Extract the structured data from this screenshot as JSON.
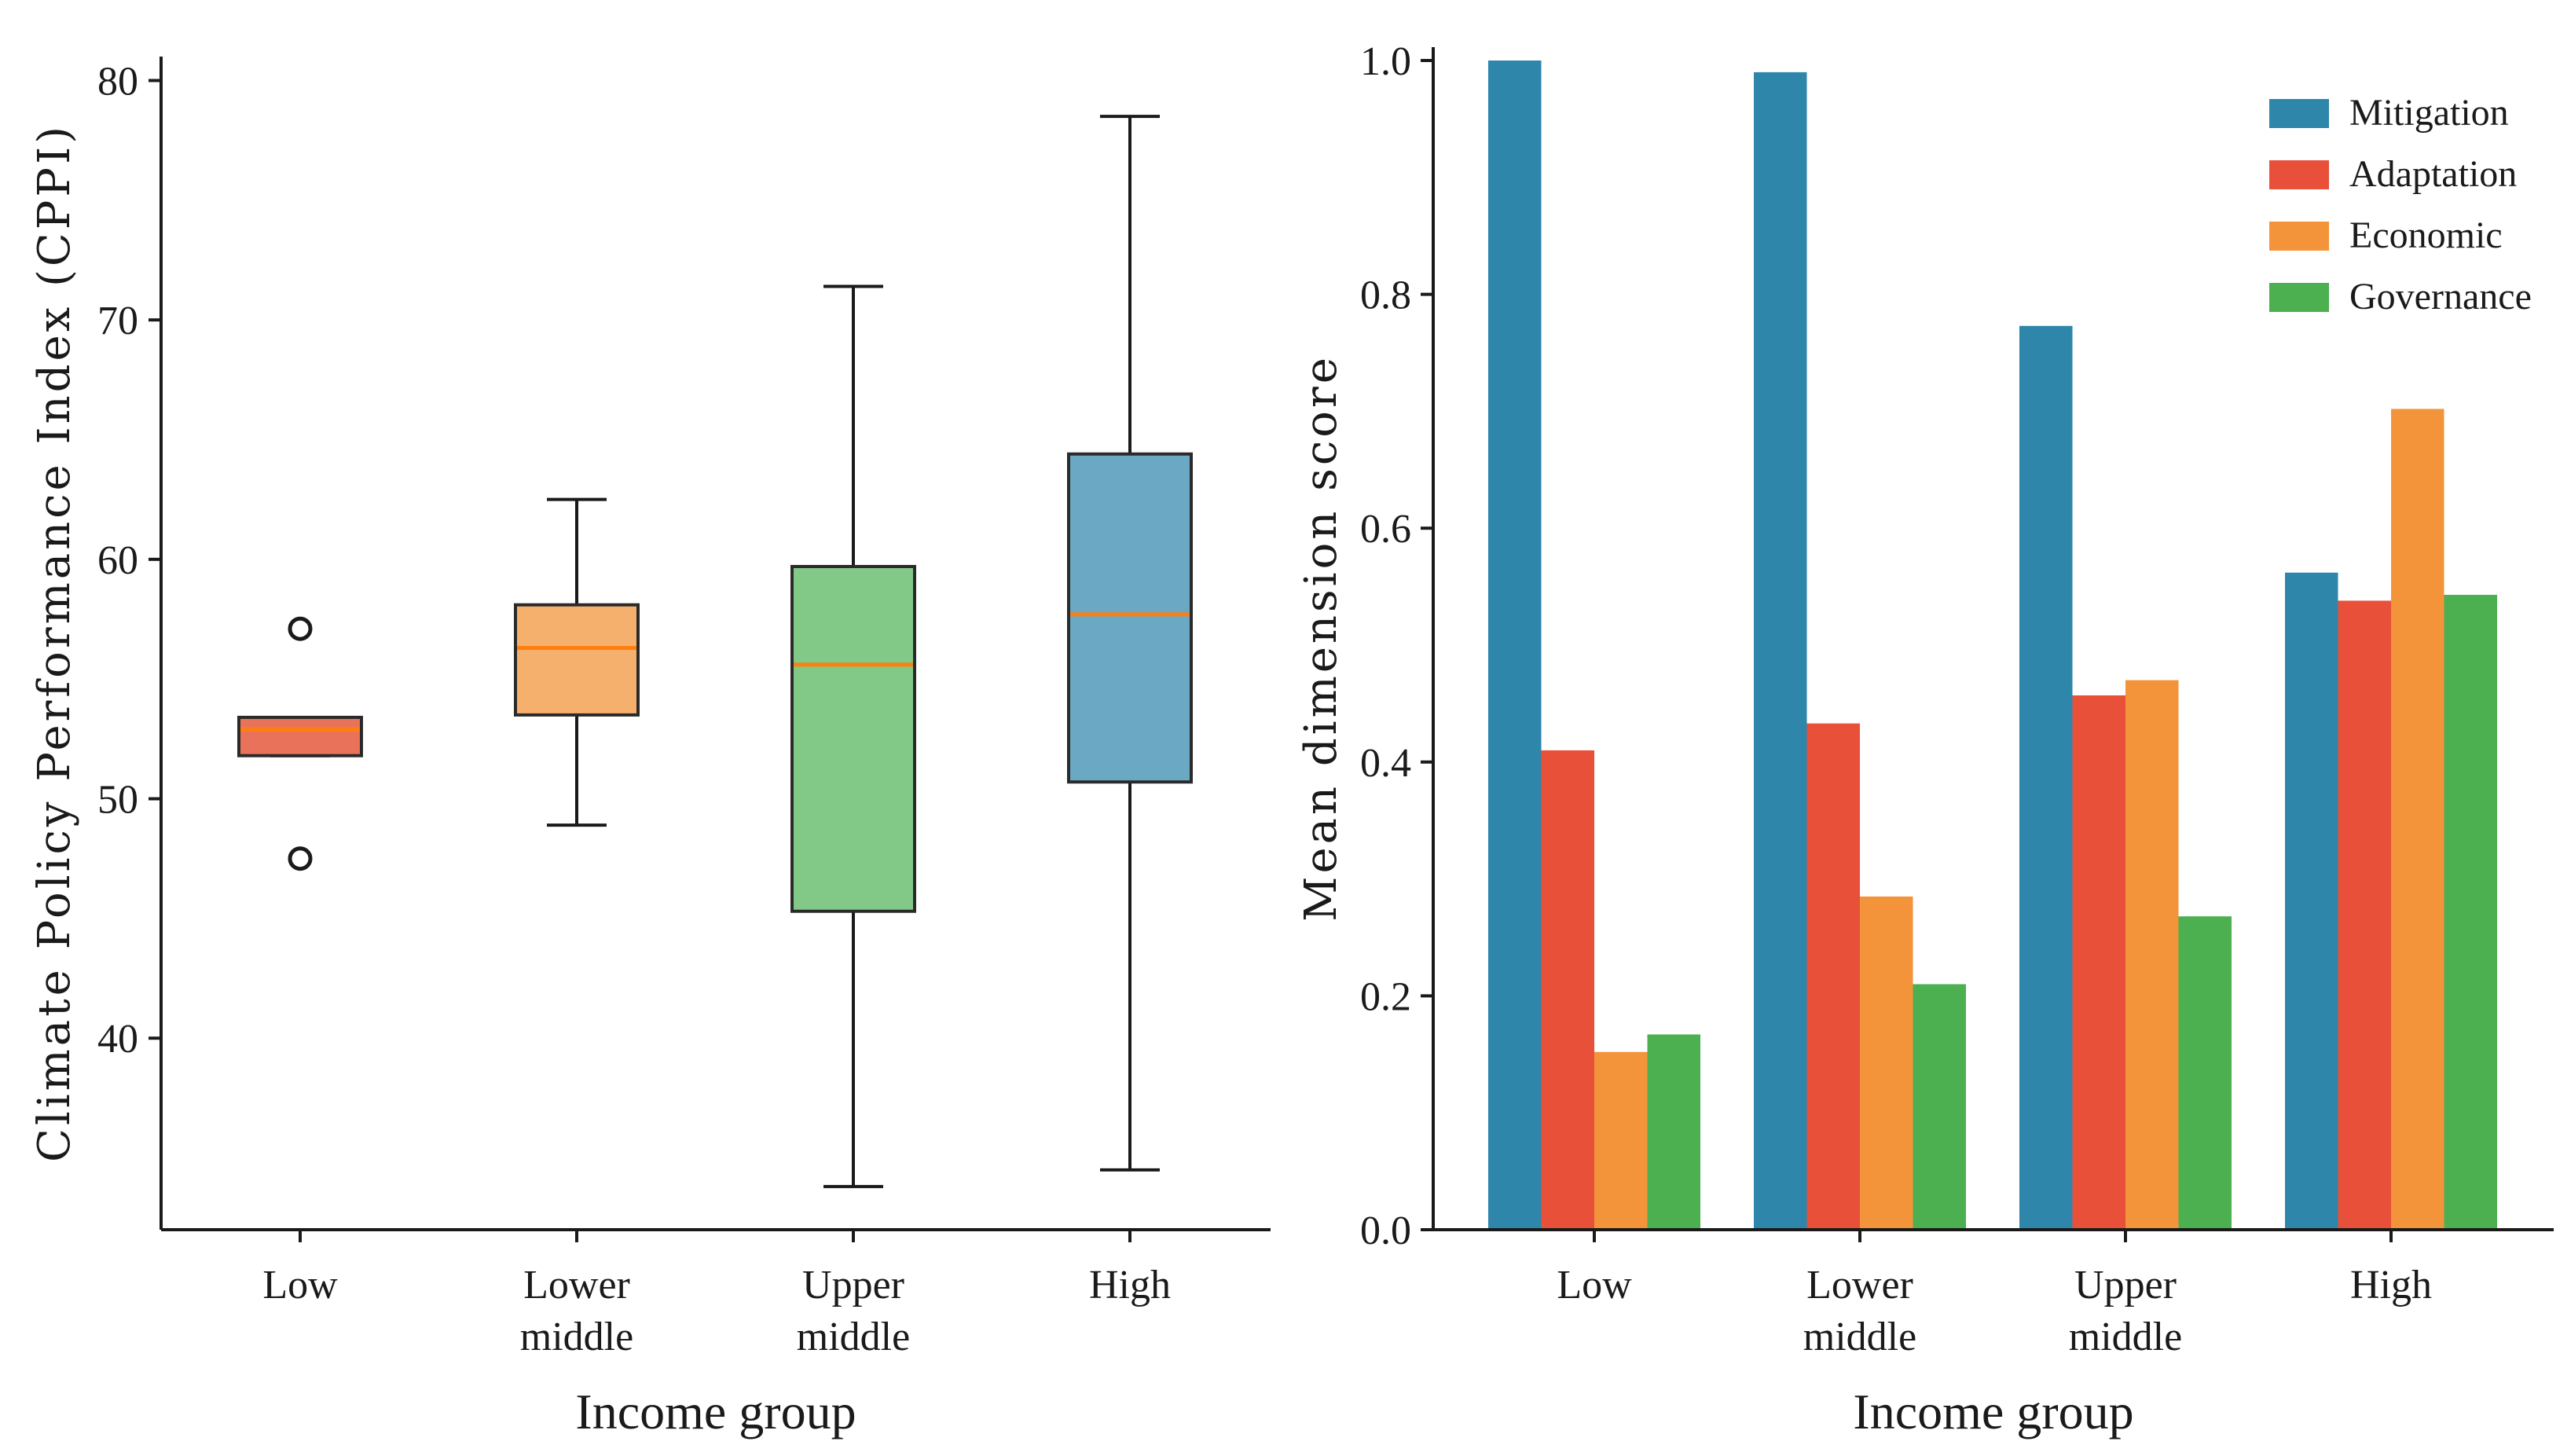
{
  "chart_data": [
    {
      "type": "box",
      "ylabel": "Climate Policy Performance Index (CPPI)",
      "xlabel": "Income group",
      "ylim": [
        32,
        81
      ],
      "yticks": [
        40,
        50,
        60,
        70,
        80
      ],
      "categories": [
        "Low",
        "Lower\nmiddle",
        "Upper\nmiddle",
        "High"
      ],
      "boxes": [
        {
          "name": "Low",
          "whisker_low": 51.8,
          "q1": 51.8,
          "median": 52.9,
          "q3": 53.4,
          "whisker_high": 53.4,
          "outliers": [
            57.1,
            47.5
          ],
          "color": "#e8735a"
        },
        {
          "name": "Lower middle",
          "whisker_low": 48.9,
          "q1": 53.5,
          "median": 56.3,
          "q3": 58.1,
          "whisker_high": 62.5,
          "outliers": [],
          "color": "#f5b06e"
        },
        {
          "name": "Upper middle",
          "whisker_low": 33.8,
          "q1": 45.3,
          "median": 55.6,
          "q3": 59.7,
          "whisker_high": 71.4,
          "outliers": [],
          "color": "#82c886"
        },
        {
          "name": "High",
          "whisker_low": 34.5,
          "q1": 50.7,
          "median": 57.7,
          "q3": 64.4,
          "whisker_high": 78.5,
          "outliers": [],
          "color": "#6aa8c4"
        }
      ],
      "median_color": "#ff7f0e"
    },
    {
      "type": "bar",
      "ylabel": "Mean dimension score",
      "xlabel": "Income group",
      "ylim": [
        0,
        1.0
      ],
      "yticks": [
        0.0,
        0.2,
        0.4,
        0.6,
        0.8,
        1.0
      ],
      "ytick_labels": [
        "0.0",
        "0.2",
        "0.4",
        "0.6",
        "0.8",
        "1.0"
      ],
      "categories": [
        "Low",
        "Lower\nmiddle",
        "Upper\nmiddle",
        "High"
      ],
      "legend_position": "top-right",
      "series": [
        {
          "name": "Mitigation",
          "color": "#2e86ab",
          "values": [
            1.0,
            0.99,
            0.773,
            0.562
          ]
        },
        {
          "name": "Adaptation",
          "color": "#e8503a",
          "values": [
            0.41,
            0.433,
            0.457,
            0.538
          ]
        },
        {
          "name": "Economic",
          "color": "#f4943a",
          "values": [
            0.152,
            0.285,
            0.47,
            0.702
          ]
        },
        {
          "name": "Governance",
          "color": "#4caf50",
          "values": [
            0.167,
            0.21,
            0.268,
            0.543
          ]
        }
      ]
    }
  ]
}
